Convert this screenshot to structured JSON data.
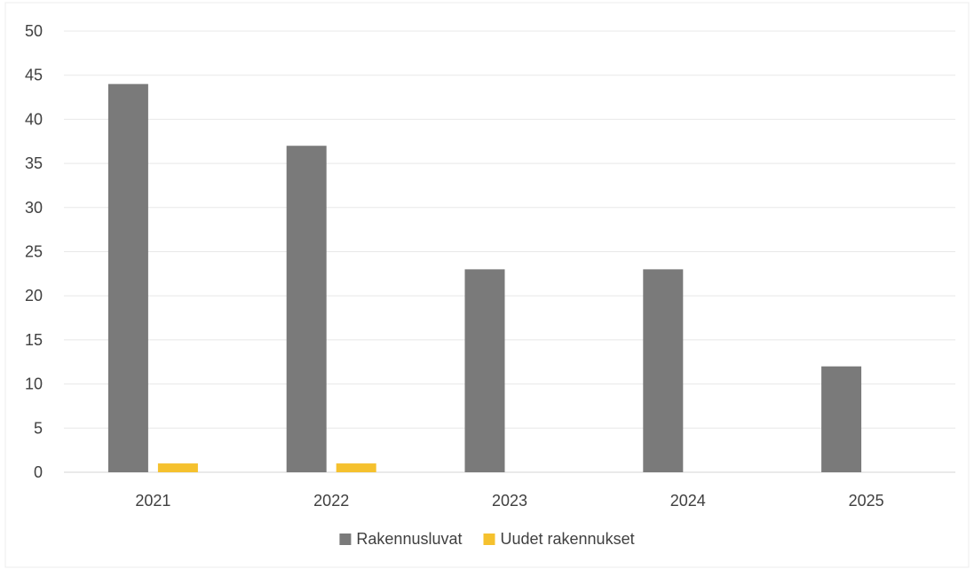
{
  "chart_data": {
    "type": "bar",
    "categories": [
      "2021",
      "2022",
      "2023",
      "2024",
      "2025"
    ],
    "series": [
      {
        "name": "Rakennusluvat",
        "values": [
          44,
          37,
          23,
          23,
          12
        ],
        "color": "#7a7a7a"
      },
      {
        "name": "Uudet rakennukset",
        "values": [
          1,
          1,
          null,
          null,
          null
        ],
        "color": "#f5c12e"
      }
    ],
    "ylim": [
      0,
      50
    ],
    "yticks": [
      0,
      5,
      10,
      15,
      20,
      25,
      30,
      35,
      40,
      45,
      50
    ],
    "grid": true,
    "legend_position": "bottom"
  }
}
